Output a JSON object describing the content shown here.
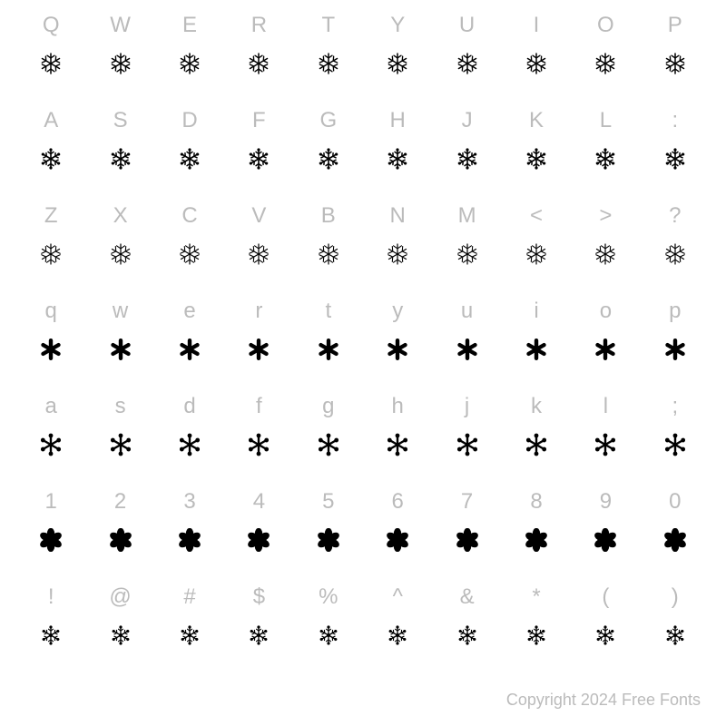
{
  "rows": [
    {
      "chars": [
        "Q",
        "W",
        "E",
        "R",
        "T",
        "Y",
        "U",
        "I",
        "O",
        "P"
      ],
      "glyph_style": "snow-detailed"
    },
    {
      "chars": [
        "A",
        "S",
        "D",
        "F",
        "G",
        "H",
        "J",
        "K",
        "L",
        ":"
      ],
      "glyph_style": "snow-medium"
    },
    {
      "chars": [
        "Z",
        "X",
        "C",
        "V",
        "B",
        "N",
        "M",
        "<",
        ">",
        "?"
      ],
      "glyph_style": "snow-crystal"
    },
    {
      "chars": [
        "q",
        "w",
        "e",
        "r",
        "t",
        "y",
        "u",
        "i",
        "o",
        "p"
      ],
      "glyph_style": "asterisk-bold"
    },
    {
      "chars": [
        "a",
        "s",
        "d",
        "f",
        "g",
        "h",
        "j",
        "k",
        "l",
        ";"
      ],
      "glyph_style": "asterisk-dots"
    },
    {
      "chars": [
        "1",
        "2",
        "3",
        "4",
        "5",
        "6",
        "7",
        "8",
        "9",
        "0"
      ],
      "glyph_style": "flower-solid"
    },
    {
      "chars": [
        "!",
        "@",
        "#",
        "$",
        "%",
        "^",
        "&",
        "*",
        "(",
        ")"
      ],
      "glyph_style": "snow-tiny"
    }
  ],
  "copyright": "Copyright 2024 Free Fonts",
  "colors": {
    "label": "#bbbbbb",
    "glyph": "#000000",
    "background": "#ffffff"
  },
  "label_fontsize": 24
}
